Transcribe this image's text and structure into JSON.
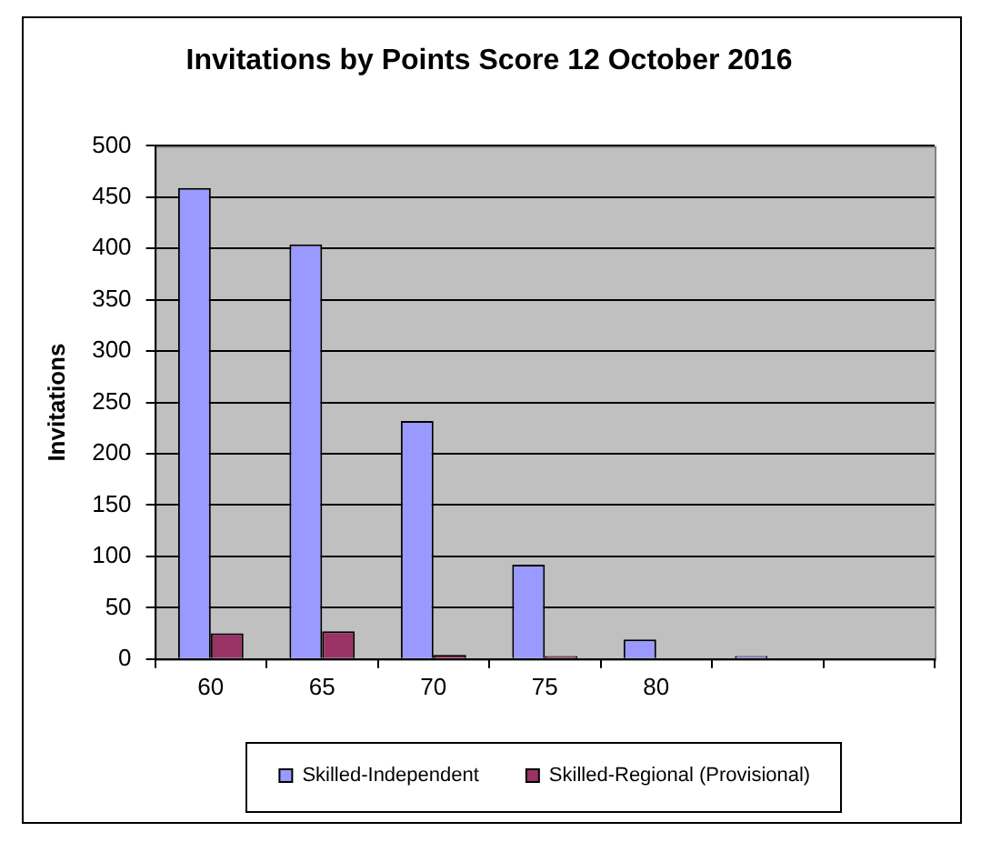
{
  "chart_data": {
    "type": "bar",
    "title": "Invitations by Points Score 12 October 2016",
    "ylabel": "Invitations",
    "categories": [
      "60",
      "65",
      "70",
      "75",
      "80",
      null,
      null
    ],
    "series": [
      {
        "name": "Skilled-Independent",
        "color": "#9999ff",
        "values": [
          459,
          404,
          232,
          92,
          19,
          3,
          null
        ]
      },
      {
        "name": "Skilled-Regional (Provisional)",
        "color": "#993366",
        "values": [
          25,
          27,
          4,
          3,
          null,
          null,
          null
        ]
      }
    ],
    "ylim": [
      0,
      500
    ],
    "yticks": [
      0,
      50,
      100,
      150,
      200,
      250,
      300,
      350,
      400,
      450,
      500
    ],
    "grid": "y",
    "legend": "bottom"
  }
}
